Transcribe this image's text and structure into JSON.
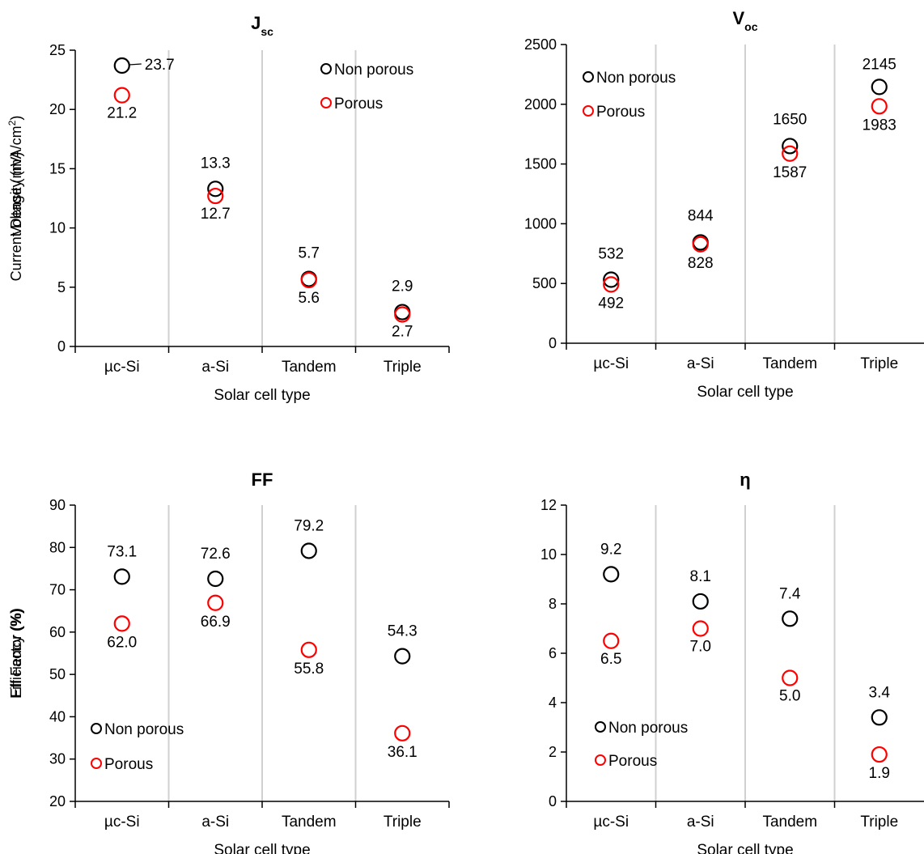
{
  "chart_data": [
    {
      "type": "scatter",
      "title": "J",
      "title_sub": "sc",
      "xlabel": "Solar cell type",
      "ylabel": "Current Density (mA/cm",
      "ylabel_sup": "2",
      "ylabel_end": ")",
      "categories": [
        "µc-Si",
        "a-Si",
        "Tandem",
        "Triple"
      ],
      "ylim": [
        0,
        25
      ],
      "yticks": [
        0,
        5,
        10,
        15,
        20,
        25
      ],
      "grid": "vertical separators between categories",
      "legend_placement": "top-right",
      "series": [
        {
          "name": "Non porous",
          "color": "#000000",
          "values": [
            23.7,
            13.3,
            5.7,
            2.9
          ],
          "labels": [
            "23.7",
            "13.3",
            "5.7",
            "2.9"
          ]
        },
        {
          "name": "Porous",
          "color": "#ff0000",
          "values": [
            21.2,
            12.7,
            5.6,
            2.7
          ],
          "labels": [
            "21.2",
            "12.7",
            "5.6",
            "2.7"
          ]
        }
      ]
    },
    {
      "type": "scatter",
      "title": "V",
      "title_sub": "oc",
      "xlabel": "Solar cell type",
      "ylabel": "Voltage (mV)",
      "ylabel_sup": "",
      "ylabel_end": "",
      "categories": [
        "µc-Si",
        "a-Si",
        "Tandem",
        "Triple"
      ],
      "ylim": [
        0,
        2500
      ],
      "yticks": [
        0,
        500,
        1000,
        1500,
        2000,
        2500
      ],
      "grid": "vertical separators between categories",
      "legend_placement": "top-left",
      "series": [
        {
          "name": "Non porous",
          "color": "#000000",
          "values": [
            532,
            844,
            1650,
            2145
          ],
          "labels": [
            "532",
            "844",
            "1650",
            "2145"
          ]
        },
        {
          "name": "Porous",
          "color": "#ff0000",
          "values": [
            492,
            828,
            1587,
            1983
          ],
          "labels": [
            "492",
            "828",
            "1587",
            "1983"
          ]
        }
      ]
    },
    {
      "type": "scatter",
      "title": "FF",
      "title_sub": "",
      "xlabel": "Solar cell type",
      "ylabel": "Fill Factor (%)",
      "ylabel_sup": "",
      "ylabel_end": "",
      "categories": [
        "µc-Si",
        "a-Si",
        "Tandem",
        "Triple"
      ],
      "ylim": [
        20,
        90
      ],
      "yticks": [
        20,
        30,
        40,
        50,
        60,
        70,
        80,
        90
      ],
      "grid": "vertical separators between categories",
      "legend_placement": "bottom-left",
      "series": [
        {
          "name": "Non porous",
          "color": "#000000",
          "values": [
            73.1,
            72.6,
            79.2,
            54.3
          ],
          "labels": [
            "73.1",
            "72.6",
            "79.2",
            "54.3"
          ]
        },
        {
          "name": "Porous",
          "color": "#ff0000",
          "values": [
            62.0,
            66.9,
            55.8,
            36.1
          ],
          "labels": [
            "62.0",
            "66.9",
            "55.8",
            "36.1"
          ]
        }
      ]
    },
    {
      "type": "scatter",
      "title": "η",
      "title_sub": "",
      "xlabel": "Solar cell type",
      "ylabel": "Efficiency (%)",
      "ylabel_sup": "",
      "ylabel_end": "",
      "categories": [
        "µc-Si",
        "a-Si",
        "Tandem",
        "Triple"
      ],
      "ylim": [
        0,
        12
      ],
      "yticks": [
        0,
        2,
        4,
        6,
        8,
        10,
        12
      ],
      "grid": "vertical separators between categories",
      "legend_placement": "bottom-left",
      "series": [
        {
          "name": "Non porous",
          "color": "#000000",
          "values": [
            9.2,
            8.1,
            7.4,
            3.4
          ],
          "labels": [
            "9.2",
            "8.1",
            "7.4",
            "3.4"
          ]
        },
        {
          "name": "Porous",
          "color": "#ff0000",
          "values": [
            6.5,
            7.0,
            5.0,
            1.9
          ],
          "labels": [
            "6.5",
            "7.0",
            "5.0",
            "1.9"
          ]
        }
      ]
    }
  ]
}
